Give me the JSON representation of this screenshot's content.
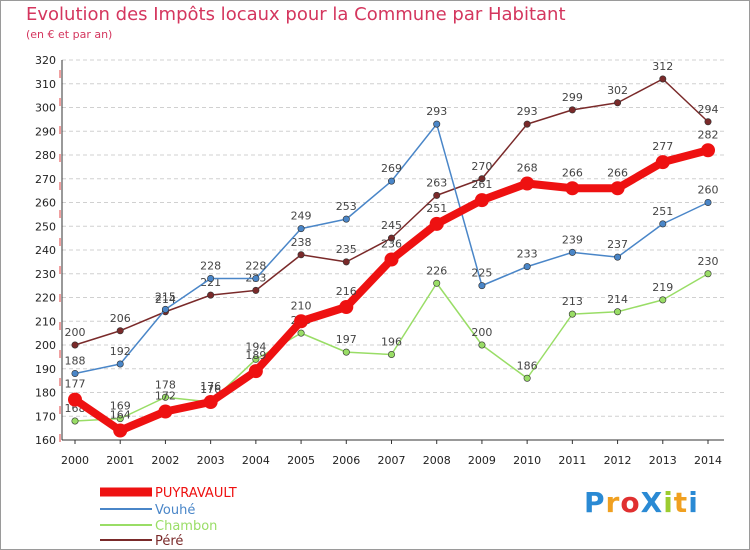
{
  "chart_data": {
    "type": "line",
    "title": "Evolution des Impôts locaux pour la Commune par Habitant",
    "subtitle": "(en € et par an)",
    "categories": [
      "2000",
      "2001",
      "2002",
      "2003",
      "2004",
      "2005",
      "2006",
      "2007",
      "2008",
      "2009",
      "2010",
      "2011",
      "2012",
      "2013",
      "2014"
    ],
    "ylim": [
      160,
      320
    ],
    "yticks": [
      160,
      170,
      180,
      190,
      200,
      210,
      220,
      230,
      240,
      250,
      260,
      270,
      280,
      290,
      300,
      310,
      320
    ],
    "grid": "horizontal dashed",
    "legend_position": "bottom-left",
    "series": [
      {
        "name": "PUYRAVAULT",
        "color": "#ee1111",
        "values": [
          177,
          164,
          172,
          176,
          189,
          210,
          216,
          236,
          251,
          261,
          268,
          266,
          266,
          277,
          282
        ]
      },
      {
        "name": "Vouhé",
        "color": "#4a86c8",
        "values": [
          188,
          192,
          215,
          228,
          228,
          249,
          253,
          269,
          293,
          225,
          233,
          239,
          237,
          251,
          260
        ]
      },
      {
        "name": "Chambon",
        "color": "#99dd66",
        "values": [
          168,
          169,
          178,
          176,
          194,
          205,
          197,
          196,
          226,
          200,
          186,
          213,
          214,
          219,
          230
        ]
      },
      {
        "name": "Péré",
        "color": "#7a2a2a",
        "values": [
          200,
          206,
          214,
          221,
          223,
          238,
          235,
          245,
          263,
          270,
          293,
          299,
          302,
          312,
          294
        ]
      }
    ]
  },
  "logo": {
    "text": "ProXiti",
    "letters": [
      "P",
      "r",
      "o",
      "X",
      "i",
      "t",
      "i"
    ],
    "colors": [
      "#2a8ad4",
      "#f0a020",
      "#e03030",
      "#2a8ad4",
      "#9ccc30",
      "#f0a020",
      "#2a8ad4"
    ]
  }
}
